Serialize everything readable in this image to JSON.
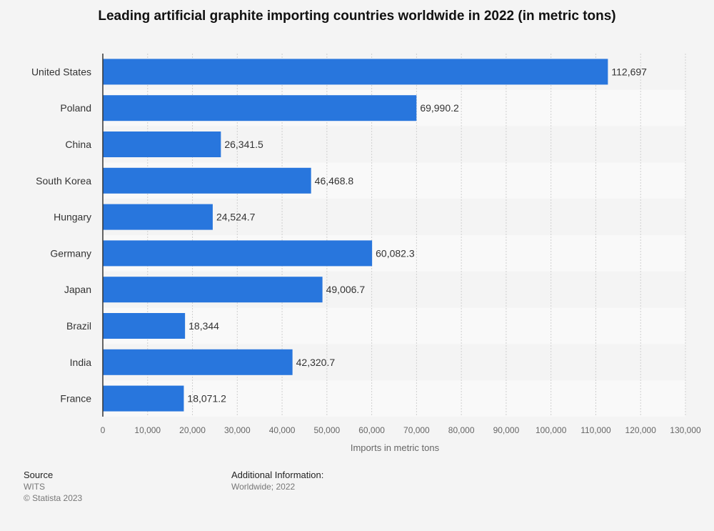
{
  "chart_data": {
    "type": "bar",
    "orientation": "horizontal",
    "title": "Leading artificial graphite importing countries worldwide in 2022 (in metric tons)",
    "xlabel": "Imports in metric tons",
    "ylabel": "",
    "categories": [
      "United States",
      "Poland",
      "China",
      "South Korea",
      "Hungary",
      "Germany",
      "Japan",
      "Brazil",
      "India",
      "France"
    ],
    "values": [
      112697,
      69990.2,
      26341.5,
      46468.8,
      24524.7,
      60082.3,
      49006.7,
      18344,
      42320.7,
      18071.2
    ],
    "value_labels": [
      "112,697",
      "69,990.2",
      "26,341.5",
      "46,468.8",
      "24,524.7",
      "60,082.3",
      "49,006.7",
      "18,344",
      "42,320.7",
      "18,071.2"
    ],
    "xlim": [
      0,
      130000
    ],
    "xticks": [
      0,
      10000,
      20000,
      30000,
      40000,
      50000,
      60000,
      70000,
      80000,
      90000,
      100000,
      110000,
      120000,
      130000
    ],
    "xtick_labels": [
      "0",
      "10,000",
      "20,000",
      "30,000",
      "40,000",
      "50,000",
      "60,000",
      "70,000",
      "80,000",
      "90,000",
      "100,000",
      "110,000",
      "120,000",
      "130,000"
    ],
    "grid": true,
    "bar_color": "#2876dd"
  },
  "footer": {
    "source_heading": "Source",
    "source_name": "WITS",
    "copyright": "© Statista 2023",
    "info_heading": "Additional Information:",
    "info_text": "Worldwide; 2022"
  }
}
